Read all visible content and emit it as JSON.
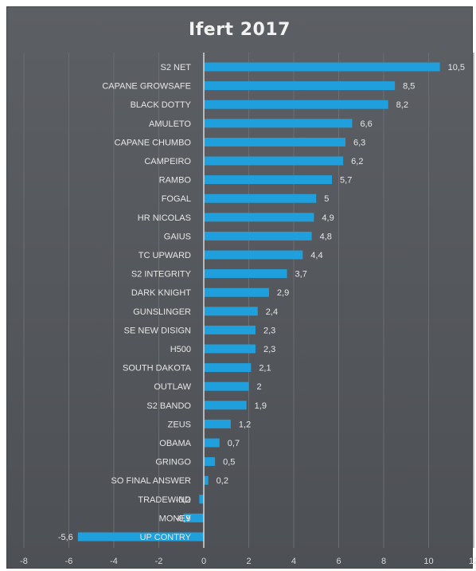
{
  "chart_data": {
    "type": "bar",
    "orientation": "horizontal",
    "title": "Ifert 2017",
    "xlabel": "",
    "ylabel": "",
    "xlim": [
      -8,
      12
    ],
    "xticks": [
      -8,
      -6,
      -4,
      -2,
      0,
      2,
      4,
      6,
      8,
      10,
      12
    ],
    "grid": true,
    "legend": "none",
    "bar_color": "#1fa0dc",
    "decimal_separator": ",",
    "categories": [
      "S2 NET",
      "CAPANE GROWSAFE",
      "BLACK DOTTY",
      "AMULETO",
      "CAPANE CHUMBO",
      "CAMPEIRO",
      "RAMBO",
      "FOGAL",
      "HR NICOLAS",
      "GAIUS",
      "TC UPWARD",
      "S2 INTEGRITY",
      "DARK KNIGHT",
      "GUNSLINGER",
      "SE NEW DISIGN",
      "H500",
      "SOUTH DAKOTA",
      "OUTLAW",
      "S2 BANDO",
      "ZEUS",
      "OBAMA",
      "GRINGO",
      "SO FINAL ANSWER",
      "TRADEWIND",
      "MONEY",
      "UP CONTRY"
    ],
    "values": [
      10.5,
      8.5,
      8.2,
      6.6,
      6.3,
      6.2,
      5.7,
      5,
      4.9,
      4.8,
      4.4,
      3.7,
      2.9,
      2.4,
      2.3,
      2.3,
      2.1,
      2,
      1.9,
      1.2,
      0.7,
      0.5,
      0.2,
      -0.2,
      -0.9,
      -5.6
    ],
    "value_labels": [
      "10,5",
      "8,5",
      "8,2",
      "6,6",
      "6,3",
      "6,2",
      "5,7",
      "5",
      "4,9",
      "4,8",
      "4,4",
      "3,7",
      "2,9",
      "2,4",
      "2,3",
      "2,3",
      "2,1",
      "2",
      "1,9",
      "1,2",
      "0,7",
      "0,5",
      "0,2",
      "-0,2",
      "-0,9",
      "-5,6"
    ]
  }
}
